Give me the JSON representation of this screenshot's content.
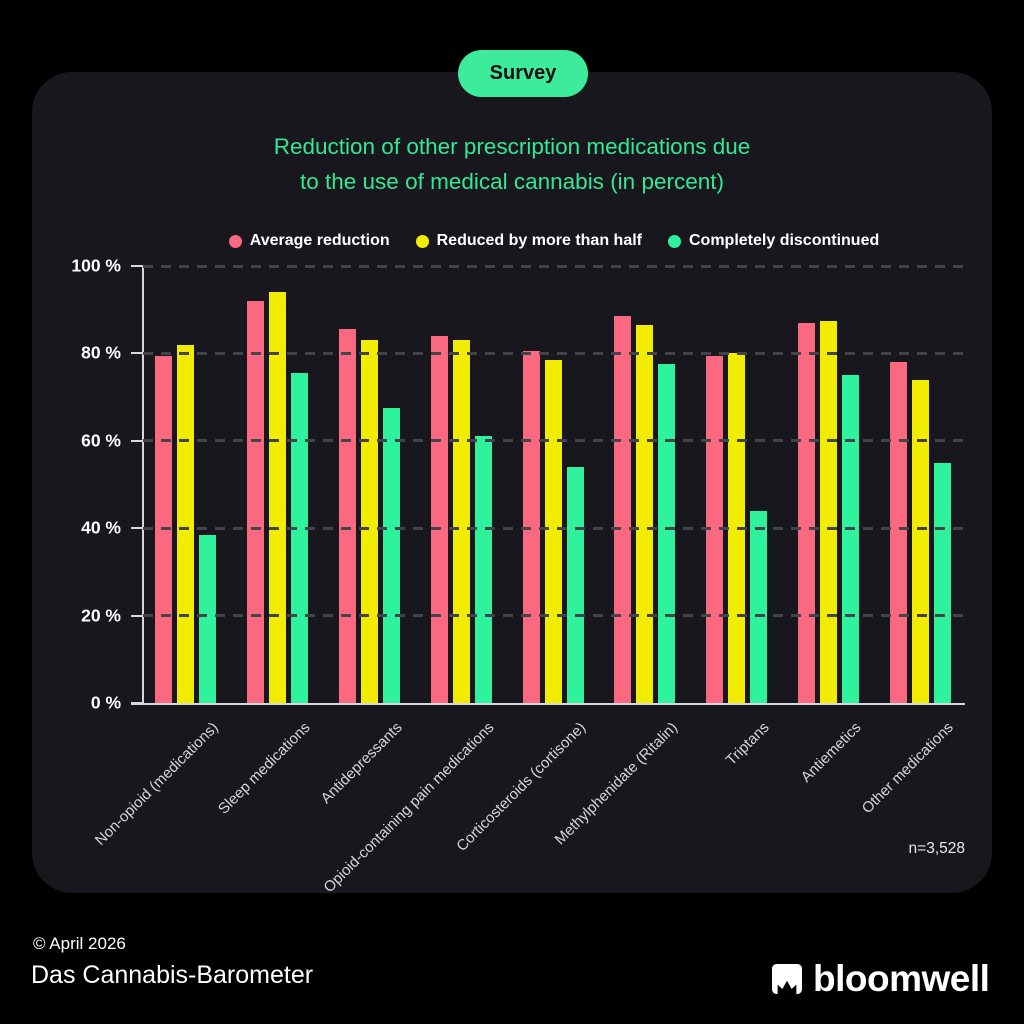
{
  "badge": {
    "label": "Survey"
  },
  "title": {
    "line1": "Reduction of other prescription medications due",
    "line2": "to the use of medical cannabis (in percent)"
  },
  "chart_data": {
    "type": "bar",
    "title": "Reduction of other prescription medications due to the use of medical cannabis (in percent)",
    "categories": [
      "Non-opioid (medications)",
      "Sleep medications",
      "Antidepressants",
      "Opioid-containing pain medications",
      "Corticosteroids (cortisone)",
      "Methylphenidate (Ritalin)",
      "Triptans",
      "Antiemetics",
      "Other medications"
    ],
    "series": [
      {
        "name": "Average reduction",
        "color": "#fa6980",
        "values": [
          79.5,
          92,
          85.5,
          84,
          80.5,
          88.5,
          79.5,
          87,
          78
        ]
      },
      {
        "name": "Reduced by more than half",
        "color": "#f2ec00",
        "values": [
          82,
          94,
          83,
          83,
          78.5,
          86.5,
          80,
          87.5,
          74
        ]
      },
      {
        "name": "Completely discontinued",
        "color": "#2ef29c",
        "values": [
          38.5,
          75.5,
          67.5,
          61,
          54,
          77.5,
          44,
          75,
          55
        ]
      }
    ],
    "ylim": [
      0,
      100
    ],
    "yticks": [
      {
        "value": 100,
        "label": "100 %"
      },
      {
        "value": 80,
        "label": "80 %"
      },
      {
        "value": 60,
        "label": "60 %"
      },
      {
        "value": 40,
        "label": "40 %"
      },
      {
        "value": 20,
        "label": "20 %"
      },
      {
        "value": 0,
        "label": "0 %"
      }
    ],
    "grid": "horizontal dashed lines every 20%",
    "legend_position": "top center"
  },
  "annotation": {
    "sample_size": "n=3,528"
  },
  "footer": {
    "copyright": "© April 2026",
    "source": "Das Cannabis-Barometer",
    "brand": "bloomwell"
  },
  "colors": {
    "background": "#000000",
    "card": "#17171d",
    "accent_green": "#3dec9b",
    "title_green": "#35e795",
    "bar_pink": "#fa6980",
    "bar_yellow": "#f2ec00",
    "bar_green": "#2ef29c",
    "gridline": "#43434b",
    "axis": "#d8d8dc",
    "xlabel_text": "#d6d6da",
    "text_white": "#ffffff"
  }
}
